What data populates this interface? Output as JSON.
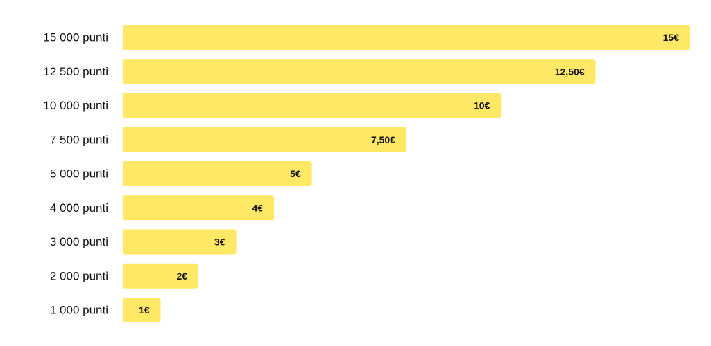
{
  "chart_data": {
    "type": "bar",
    "orientation": "horizontal",
    "categories": [
      "15 000 punti",
      "12 500 punti",
      "10 000 punti",
      "7 500 punti",
      "5 000 punti",
      "4 000 punti",
      "3 000 punti",
      "2 000 punti",
      "1 000 punti"
    ],
    "values": [
      15,
      12.5,
      10,
      7.5,
      5,
      4,
      3,
      2,
      1
    ],
    "value_labels": [
      "15€",
      "12,50€",
      "10€",
      "7,50€",
      "5€",
      "4€",
      "3€",
      "2€",
      "1€"
    ],
    "bar_color": "#FFE866",
    "xlim": [
      0,
      15
    ],
    "grid": false,
    "legend": "none",
    "title": "",
    "xlabel": "",
    "ylabel": ""
  }
}
